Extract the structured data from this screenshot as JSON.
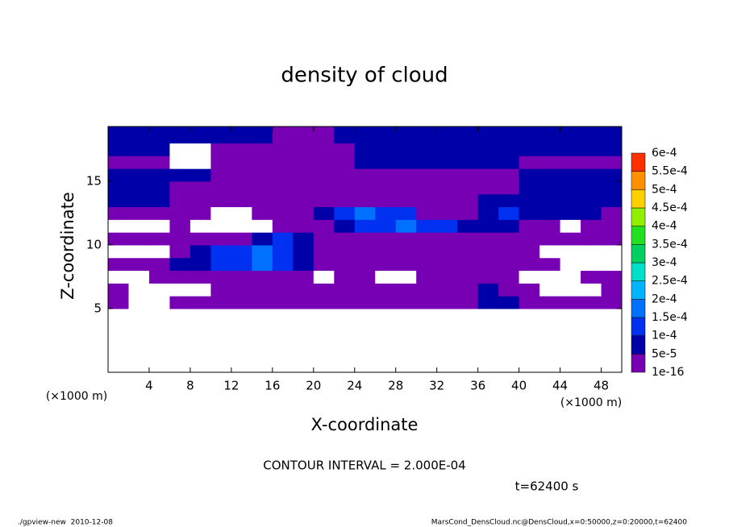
{
  "chart_data": {
    "type": "contour",
    "title": "density of cloud",
    "xlabel": "X-coordinate",
    "ylabel": "Z-coordinate",
    "x_unit_label": "(×1000 m)",
    "xlim": [
      0,
      50
    ],
    "ylim": [
      0,
      19.3
    ],
    "xticks": [
      4,
      8,
      12,
      16,
      20,
      24,
      28,
      32,
      36,
      40,
      44,
      48
    ],
    "yticks": [
      5,
      10,
      15
    ],
    "x_edges": [
      0,
      2,
      4,
      6,
      8,
      10,
      12,
      14,
      16,
      18,
      20,
      22,
      24,
      26,
      28,
      30,
      32,
      34,
      36,
      38,
      40,
      42,
      44,
      46,
      48,
      50
    ],
    "z_edges": [
      5,
      6,
      7,
      8,
      9,
      10,
      11,
      12,
      13,
      14,
      15,
      16,
      17,
      18,
      19.3
    ],
    "levels": [
      {
        "value": 1e-16,
        "label": "1e-16"
      },
      {
        "value": 5e-05,
        "label": "5e-5"
      },
      {
        "value": 0.0001,
        "label": "1e-4"
      },
      {
        "value": 0.00015,
        "label": "1.5e-4"
      },
      {
        "value": 0.0002,
        "label": "2e-4"
      },
      {
        "value": 0.00025,
        "label": "2.5e-4"
      },
      {
        "value": 0.0003,
        "label": "3e-4"
      },
      {
        "value": 0.00035,
        "label": "3.5e-4"
      },
      {
        "value": 0.0004,
        "label": "4e-4"
      },
      {
        "value": 0.00045,
        "label": "4.5e-4"
      },
      {
        "value": 0.0005,
        "label": "5e-4"
      },
      {
        "value": 0.00055,
        "label": "5.5e-4"
      },
      {
        "value": 0.0006,
        "label": "6e-4"
      }
    ],
    "level_colors": [
      "#7800b4",
      "#0000a8",
      "#0030f0",
      "#0070ff",
      "#00b4ff",
      "#00e0c8",
      "#00d060",
      "#20e020",
      "#90f000",
      "#ffd000",
      "#ff9000",
      "#ff3000",
      "#ff8080"
    ],
    "values": [
      [
        2e-05,
        0,
        0,
        2e-05,
        2e-05,
        2e-05,
        2e-05,
        2e-05,
        2e-05,
        2e-05,
        2e-05,
        2e-05,
        2e-05,
        2e-05,
        2e-05,
        2e-05,
        2e-05,
        2e-05,
        7e-05,
        7e-05,
        2e-05,
        2e-05,
        2e-05,
        2e-05,
        2e-05
      ],
      [
        2e-05,
        0,
        0,
        0,
        0,
        2e-05,
        2e-05,
        2e-05,
        2e-05,
        2e-05,
        2e-05,
        2e-05,
        2e-05,
        2e-05,
        2e-05,
        2e-05,
        2e-05,
        2e-05,
        7e-05,
        2e-05,
        2e-05,
        0,
        0,
        0,
        2e-05
      ],
      [
        0,
        0,
        2e-05,
        2e-05,
        2e-05,
        2e-05,
        2e-05,
        2e-05,
        2e-05,
        2e-05,
        0,
        2e-05,
        2e-05,
        0,
        0,
        2e-05,
        2e-05,
        2e-05,
        2e-05,
        2e-05,
        0,
        0,
        0,
        2e-05,
        2e-05
      ],
      [
        2e-05,
        2e-05,
        2e-05,
        7e-05,
        7e-05,
        0.00012,
        0.00012,
        0.00016,
        0.00012,
        7e-05,
        2e-05,
        2e-05,
        2e-05,
        2e-05,
        2e-05,
        2e-05,
        2e-05,
        2e-05,
        2e-05,
        2e-05,
        2e-05,
        2e-05,
        0,
        0,
        0
      ],
      [
        0,
        0,
        0,
        2e-05,
        7e-05,
        0.00012,
        0.00012,
        0.00016,
        0.00012,
        7e-05,
        2e-05,
        2e-05,
        2e-05,
        2e-05,
        2e-05,
        2e-05,
        2e-05,
        2e-05,
        2e-05,
        2e-05,
        2e-05,
        0,
        0,
        0,
        0
      ],
      [
        2e-05,
        2e-05,
        2e-05,
        2e-05,
        2e-05,
        2e-05,
        2e-05,
        7e-05,
        0.00012,
        7e-05,
        2e-05,
        2e-05,
        2e-05,
        2e-05,
        2e-05,
        2e-05,
        2e-05,
        2e-05,
        2e-05,
        2e-05,
        2e-05,
        2e-05,
        2e-05,
        2e-05,
        2e-05
      ],
      [
        0,
        0,
        0,
        2e-05,
        0,
        0,
        0,
        0,
        2e-05,
        2e-05,
        2e-05,
        7e-05,
        0.00012,
        0.00012,
        0.00016,
        0.00012,
        0.00012,
        7e-05,
        7e-05,
        7e-05,
        2e-05,
        2e-05,
        0,
        2e-05,
        2e-05
      ],
      [
        2e-05,
        2e-05,
        2e-05,
        2e-05,
        2e-05,
        0,
        0,
        2e-05,
        2e-05,
        2e-05,
        7e-05,
        0.00012,
        0.00016,
        0.00012,
        0.00012,
        2e-05,
        2e-05,
        2e-05,
        7e-05,
        0.00012,
        7e-05,
        7e-05,
        7e-05,
        7e-05,
        2e-05
      ],
      [
        7e-05,
        7e-05,
        7e-05,
        2e-05,
        2e-05,
        2e-05,
        2e-05,
        2e-05,
        2e-05,
        2e-05,
        2e-05,
        2e-05,
        2e-05,
        2e-05,
        2e-05,
        2e-05,
        2e-05,
        2e-05,
        7e-05,
        7e-05,
        7e-05,
        7e-05,
        7e-05,
        7e-05,
        7e-05
      ],
      [
        7e-05,
        7e-05,
        7e-05,
        2e-05,
        2e-05,
        2e-05,
        2e-05,
        2e-05,
        2e-05,
        2e-05,
        2e-05,
        2e-05,
        2e-05,
        2e-05,
        2e-05,
        2e-05,
        2e-05,
        2e-05,
        2e-05,
        2e-05,
        7e-05,
        7e-05,
        7e-05,
        7e-05,
        7e-05
      ],
      [
        7e-05,
        7e-05,
        7e-05,
        7e-05,
        7e-05,
        2e-05,
        2e-05,
        2e-05,
        2e-05,
        2e-05,
        2e-05,
        2e-05,
        2e-05,
        2e-05,
        2e-05,
        2e-05,
        2e-05,
        2e-05,
        2e-05,
        2e-05,
        7e-05,
        7e-05,
        7e-05,
        7e-05,
        7e-05
      ],
      [
        2e-05,
        2e-05,
        2e-05,
        0,
        0,
        2e-05,
        2e-05,
        2e-05,
        2e-05,
        2e-05,
        2e-05,
        2e-05,
        7e-05,
        7e-05,
        7e-05,
        7e-05,
        7e-05,
        7e-05,
        7e-05,
        7e-05,
        2e-05,
        2e-05,
        2e-05,
        2e-05,
        2e-05
      ],
      [
        7e-05,
        7e-05,
        7e-05,
        0,
        0,
        2e-05,
        2e-05,
        2e-05,
        2e-05,
        2e-05,
        2e-05,
        2e-05,
        7e-05,
        7e-05,
        7e-05,
        7e-05,
        7e-05,
        7e-05,
        7e-05,
        7e-05,
        7e-05,
        7e-05,
        7e-05,
        7e-05,
        7e-05
      ],
      [
        7e-05,
        7e-05,
        7e-05,
        7e-05,
        7e-05,
        7e-05,
        7e-05,
        7e-05,
        2e-05,
        2e-05,
        2e-05,
        7e-05,
        7e-05,
        7e-05,
        7e-05,
        7e-05,
        7e-05,
        7e-05,
        7e-05,
        7e-05,
        7e-05,
        7e-05,
        7e-05,
        7e-05,
        7e-05
      ]
    ],
    "contour_interval": "CONTOUR INTERVAL = 2.000E-04",
    "time_label": "t=62400 s",
    "footer_left": "./gpview-new  2010-12-08",
    "footer_right": "MarsCond_DensCloud.nc@DensCloud,x=0:50000,z=0:20000,t=62400"
  }
}
